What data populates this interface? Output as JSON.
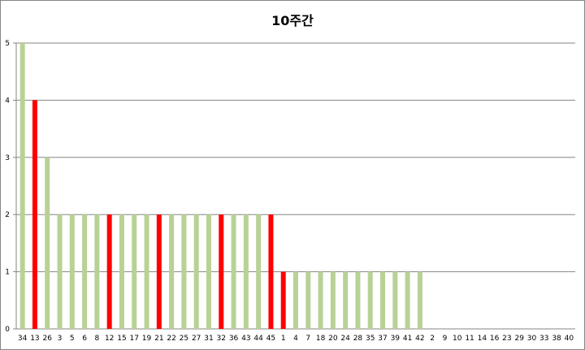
{
  "chart_data": {
    "type": "bar",
    "title": "10주간",
    "xlabel": "",
    "ylabel": "",
    "ylim": [
      0,
      5
    ],
    "yticks": [
      "0",
      "1",
      "2",
      "3",
      "4",
      "5"
    ],
    "grid": true,
    "legend": "none",
    "categories": [
      "34",
      "13",
      "26",
      "3",
      "5",
      "6",
      "8",
      "12",
      "15",
      "17",
      "19",
      "21",
      "22",
      "25",
      "27",
      "31",
      "32",
      "36",
      "43",
      "44",
      "45",
      "1",
      "4",
      "7",
      "18",
      "20",
      "24",
      "28",
      "35",
      "37",
      "39",
      "41",
      "42",
      "2",
      "9",
      "10",
      "11",
      "14",
      "16",
      "23",
      "29",
      "30",
      "33",
      "38",
      "40"
    ],
    "values": [
      5,
      4,
      3,
      2,
      2,
      2,
      2,
      2,
      2,
      2,
      2,
      2,
      2,
      2,
      2,
      2,
      2,
      2,
      2,
      2,
      2,
      1,
      1,
      1,
      1,
      1,
      1,
      1,
      1,
      1,
      1,
      1,
      1,
      0,
      0,
      0,
      0,
      0,
      0,
      0,
      0,
      0,
      0,
      0,
      0
    ],
    "highlighted": [
      "13",
      "12",
      "21",
      "32",
      "45",
      "1"
    ],
    "colors": {
      "normal": "#b8d295",
      "highlight": "#ff0000",
      "grid": "#868686"
    }
  }
}
